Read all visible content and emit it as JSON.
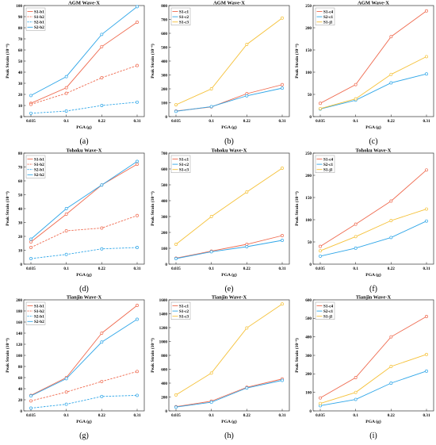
{
  "figure": {
    "palette": {
      "red": "#ef6a4f",
      "blue": "#2fa6e8",
      "yellow": "#f5c138",
      "axis": "#333333",
      "grid": "#dddddd"
    }
  },
  "chart_data": [
    {
      "id": "a",
      "caption": "(a)",
      "type": "line",
      "title": "AGM Wave-X",
      "xlabel": "PGA (g)",
      "ylabel": "Peak Strain (10⁻⁶)",
      "categories": [
        "0.035",
        "0.1",
        "0.22",
        "0.31"
      ],
      "ylim": [
        0,
        100
      ],
      "yticks": [
        0,
        10,
        20,
        30,
        40,
        50,
        60,
        70,
        80,
        90,
        100
      ],
      "grid": false,
      "legend": "top-left",
      "series": [
        {
          "name": "S1-b1",
          "values": [
            12,
            26,
            63,
            85
          ],
          "color": "red",
          "dash": false
        },
        {
          "name": "S1-b2",
          "values": [
            11,
            21,
            35,
            46
          ],
          "color": "red",
          "dash": true
        },
        {
          "name": "S2-b1",
          "values": [
            3,
            5,
            10,
            13
          ],
          "color": "blue",
          "dash": true
        },
        {
          "name": "S2-b2",
          "values": [
            19,
            36,
            74,
            99
          ],
          "color": "blue",
          "dash": false
        }
      ]
    },
    {
      "id": "b",
      "caption": "(b)",
      "type": "line",
      "title": "AGM Wave-X",
      "xlabel": "PGA (g)",
      "ylabel": "Peak Strain (10⁻⁶)",
      "categories": [
        "0.035",
        "0.1",
        "0.22",
        "0.31"
      ],
      "ylim": [
        0,
        800
      ],
      "yticks": [
        0,
        100,
        200,
        300,
        400,
        500,
        600,
        700,
        800
      ],
      "grid": false,
      "legend": "top-left",
      "series": [
        {
          "name": "S1-c1",
          "values": [
            40,
            70,
            165,
            230
          ],
          "color": "red",
          "dash": false
        },
        {
          "name": "S1-c2",
          "values": [
            38,
            72,
            150,
            205
          ],
          "color": "blue",
          "dash": false
        },
        {
          "name": "S1-c3",
          "values": [
            85,
            200,
            520,
            710
          ],
          "color": "yellow",
          "dash": false
        }
      ]
    },
    {
      "id": "c",
      "caption": "(c)",
      "type": "line",
      "title": "AGM Wave-X",
      "xlabel": "PGA (g)",
      "ylabel": "Peak Strain (10⁻⁶)",
      "categories": [
        "0.035",
        "0.1",
        "0.22",
        "0.31"
      ],
      "ylim": [
        0,
        250
      ],
      "yticks": [
        0,
        50,
        100,
        150,
        200,
        250
      ],
      "grid": false,
      "legend": "top-left",
      "series": [
        {
          "name": "S1-c4",
          "values": [
            30,
            72,
            180,
            238
          ],
          "color": "red",
          "dash": false
        },
        {
          "name": "S2-c1",
          "values": [
            17,
            37,
            76,
            96
          ],
          "color": "blue",
          "dash": false
        },
        {
          "name": "S1-j1",
          "values": [
            18,
            40,
            95,
            135
          ],
          "color": "yellow",
          "dash": false
        }
      ]
    },
    {
      "id": "d",
      "caption": "(d)",
      "type": "line",
      "title": "Tohoku Wave-X",
      "xlabel": "PGA (g)",
      "ylabel": "Peak Strain (10⁻⁶)",
      "categories": [
        "0.035",
        "0.1",
        "0.22",
        "0.31"
      ],
      "ylim": [
        0,
        80
      ],
      "yticks": [
        0,
        10,
        20,
        30,
        40,
        50,
        60,
        70,
        80
      ],
      "grid": false,
      "legend": "top-left",
      "series": [
        {
          "name": "S1-b1",
          "values": [
            16,
            36,
            57,
            72
          ],
          "color": "red",
          "dash": false
        },
        {
          "name": "S1-b2",
          "values": [
            12,
            24,
            26,
            35
          ],
          "color": "red",
          "dash": true
        },
        {
          "name": "S2-b1",
          "values": [
            4,
            7,
            11,
            12
          ],
          "color": "blue",
          "dash": true
        },
        {
          "name": "S2-b2",
          "values": [
            18,
            40,
            57,
            74
          ],
          "color": "blue",
          "dash": false
        }
      ]
    },
    {
      "id": "e",
      "caption": "(e)",
      "type": "line",
      "title": "Tohoku Wave-X",
      "xlabel": "PGA (g)",
      "ylabel": "Peak Strain (10⁻⁶)",
      "categories": [
        "0.035",
        "0.1",
        "0.22",
        "0.31"
      ],
      "ylim": [
        0,
        700
      ],
      "yticks": [
        0,
        100,
        200,
        300,
        400,
        500,
        600,
        700
      ],
      "grid": false,
      "legend": "top-left",
      "series": [
        {
          "name": "S1-c1",
          "values": [
            38,
            82,
            125,
            180
          ],
          "color": "red",
          "dash": false
        },
        {
          "name": "S1-c2",
          "values": [
            35,
            78,
            110,
            150
          ],
          "color": "blue",
          "dash": false
        },
        {
          "name": "S1-c3",
          "values": [
            125,
            300,
            455,
            605
          ],
          "color": "yellow",
          "dash": false
        }
      ]
    },
    {
      "id": "f",
      "caption": "(f)",
      "type": "line",
      "title": "Tohoku Wave-X",
      "xlabel": "PGA (g)",
      "ylabel": "Peak Strain (10⁻⁶)",
      "categories": [
        "0.035",
        "0.1",
        "0.22",
        "0.31"
      ],
      "ylim": [
        0,
        250
      ],
      "yticks": [
        0,
        50,
        100,
        150,
        200,
        250
      ],
      "grid": false,
      "legend": "top-left",
      "series": [
        {
          "name": "S1-c4",
          "values": [
            40,
            90,
            142,
            212
          ],
          "color": "red",
          "dash": false
        },
        {
          "name": "S2-c1",
          "values": [
            18,
            36,
            60,
            97
          ],
          "color": "blue",
          "dash": false
        },
        {
          "name": "S1-j1",
          "values": [
            30,
            62,
            98,
            124
          ],
          "color": "yellow",
          "dash": false
        }
      ]
    },
    {
      "id": "g",
      "caption": "(g)",
      "type": "line",
      "title": "Tianjin Wave-X",
      "xlabel": "PGA (g)",
      "ylabel": "Peak Strain (10⁻⁶)",
      "categories": [
        "0.035",
        "0.1",
        "0.22",
        "0.31"
      ],
      "ylim": [
        0,
        200
      ],
      "yticks": [
        0,
        20,
        40,
        60,
        80,
        100,
        120,
        140,
        160,
        180,
        200
      ],
      "grid": false,
      "legend": "top-left",
      "series": [
        {
          "name": "S1-b1",
          "values": [
            28,
            60,
            140,
            190
          ],
          "color": "red",
          "dash": false
        },
        {
          "name": "S1-b2",
          "values": [
            18,
            34,
            53,
            71
          ],
          "color": "red",
          "dash": true
        },
        {
          "name": "S2-b1",
          "values": [
            5,
            12,
            26,
            28
          ],
          "color": "blue",
          "dash": true
        },
        {
          "name": "S2-b2",
          "values": [
            27,
            58,
            124,
            165
          ],
          "color": "blue",
          "dash": false
        }
      ]
    },
    {
      "id": "h",
      "caption": "(h)",
      "type": "line",
      "title": "Tianjin Wave-X",
      "xlabel": "PGA (g)",
      "ylabel": "Peak Strain (10⁻⁶)",
      "categories": [
        "0.035",
        "0.1",
        "0.22",
        "0.31"
      ],
      "ylim": [
        0,
        1600
      ],
      "yticks": [
        0,
        200,
        400,
        600,
        800,
        1000,
        1200,
        1400,
        1600
      ],
      "grid": false,
      "legend": "top-left",
      "series": [
        {
          "name": "S1-c1",
          "values": [
            60,
            140,
            340,
            460
          ],
          "color": "red",
          "dash": false
        },
        {
          "name": "S1-c2",
          "values": [
            55,
            125,
            330,
            440
          ],
          "color": "blue",
          "dash": false
        },
        {
          "name": "S1-c3",
          "values": [
            230,
            545,
            1195,
            1540
          ],
          "color": "yellow",
          "dash": false
        }
      ]
    },
    {
      "id": "i",
      "caption": "(i)",
      "type": "line",
      "title": "Tianjin Wave-X",
      "xlabel": "PGA (g)",
      "ylabel": "Peak Strain (10⁻⁶)",
      "categories": [
        "0.035",
        "0.1",
        "0.22",
        "0.31"
      ],
      "ylim": [
        0,
        600
      ],
      "yticks": [
        0,
        100,
        200,
        300,
        400,
        500,
        600
      ],
      "grid": false,
      "legend": "top-left",
      "series": [
        {
          "name": "S1-c4",
          "values": [
            70,
            180,
            400,
            510
          ],
          "color": "red",
          "dash": false
        },
        {
          "name": "S2-c1",
          "values": [
            28,
            62,
            150,
            215
          ],
          "color": "blue",
          "dash": false
        },
        {
          "name": "S1-j1",
          "values": [
            40,
            100,
            240,
            305
          ],
          "color": "yellow",
          "dash": false
        }
      ]
    }
  ]
}
